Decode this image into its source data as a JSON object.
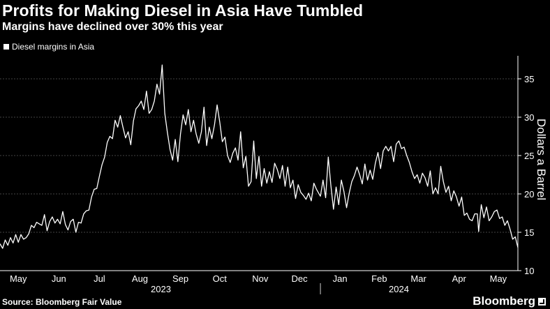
{
  "title": "Profits for Making Diesel in Asia Have Tumbled",
  "subtitle": "Margins have declined over 30% this year",
  "source": "Source: Bloomberg Fair Value",
  "brand": "Bloomberg",
  "colors": {
    "background": "#000000",
    "line": "#ffffff",
    "grid": "#5a5a5a"
  },
  "chart_data": {
    "type": "line",
    "title": "Profits for Making Diesel in Asia Have Tumbled",
    "subtitle": "Margins have declined over 30% this year",
    "ylabel": "Dollars a Barrel",
    "xlabel": "",
    "ylim": [
      10,
      38
    ],
    "yticks": [
      10,
      15,
      20,
      25,
      30,
      35
    ],
    "grid": true,
    "legend_position": "top-left",
    "x_start": "2023-05-01",
    "x_end": "2024-05-31",
    "x_tick_labels": [
      {
        "label": "May",
        "date": "2023-05-15"
      },
      {
        "label": "Jun",
        "date": "2023-06-15"
      },
      {
        "label": "Jul",
        "date": "2023-07-16"
      },
      {
        "label": "Aug",
        "date": "2023-08-16"
      },
      {
        "label": "Sep",
        "date": "2023-09-16"
      },
      {
        "label": "Oct",
        "date": "2023-10-16"
      },
      {
        "label": "Nov",
        "date": "2023-11-16"
      },
      {
        "label": "Dec",
        "date": "2023-12-16"
      },
      {
        "label": "Jan",
        "date": "2024-01-16"
      },
      {
        "label": "Feb",
        "date": "2024-02-15"
      },
      {
        "label": "Mar",
        "date": "2024-03-16"
      },
      {
        "label": "Apr",
        "date": "2024-04-16"
      },
      {
        "label": "May",
        "date": "2024-05-16"
      }
    ],
    "year_labels": [
      {
        "label": "2023",
        "date": "2023-09-01"
      },
      {
        "label": "2024",
        "date": "2024-03-01"
      }
    ],
    "year_divider_date": "2024-01-01",
    "series": [
      {
        "name": "Diesel margins in Asia",
        "points": [
          [
            "2023-05-01",
            13.5
          ],
          [
            "2023-05-03",
            12.9
          ],
          [
            "2023-05-05",
            14.0
          ],
          [
            "2023-05-07",
            13.3
          ],
          [
            "2023-05-09",
            14.3
          ],
          [
            "2023-05-11",
            13.6
          ],
          [
            "2023-05-13",
            14.7
          ],
          [
            "2023-05-15",
            13.7
          ],
          [
            "2023-05-17",
            14.7
          ],
          [
            "2023-05-19",
            14.1
          ],
          [
            "2023-05-21",
            14.3
          ],
          [
            "2023-05-23",
            14.8
          ],
          [
            "2023-05-25",
            15.9
          ],
          [
            "2023-05-27",
            15.6
          ],
          [
            "2023-05-29",
            16.3
          ],
          [
            "2023-05-31",
            16.1
          ],
          [
            "2023-06-02",
            15.9
          ],
          [
            "2023-06-04",
            17.3
          ],
          [
            "2023-06-06",
            15.2
          ],
          [
            "2023-06-08",
            16.4
          ],
          [
            "2023-06-10",
            17.0
          ],
          [
            "2023-06-12",
            16.2
          ],
          [
            "2023-06-14",
            16.7
          ],
          [
            "2023-06-16",
            16.1
          ],
          [
            "2023-06-18",
            17.7
          ],
          [
            "2023-06-20",
            16.0
          ],
          [
            "2023-06-22",
            15.3
          ],
          [
            "2023-06-24",
            16.4
          ],
          [
            "2023-06-26",
            16.7
          ],
          [
            "2023-06-28",
            15.0
          ],
          [
            "2023-06-30",
            16.3
          ],
          [
            "2023-07-02",
            16.2
          ],
          [
            "2023-07-04",
            17.4
          ],
          [
            "2023-07-06",
            17.8
          ],
          [
            "2023-07-08",
            17.9
          ],
          [
            "2023-07-10",
            19.6
          ],
          [
            "2023-07-12",
            20.6
          ],
          [
            "2023-07-14",
            20.7
          ],
          [
            "2023-07-16",
            22.3
          ],
          [
            "2023-07-18",
            23.8
          ],
          [
            "2023-07-20",
            24.8
          ],
          [
            "2023-07-22",
            26.7
          ],
          [
            "2023-07-24",
            27.5
          ],
          [
            "2023-07-26",
            27.2
          ],
          [
            "2023-07-28",
            29.6
          ],
          [
            "2023-07-30",
            28.7
          ],
          [
            "2023-08-01",
            30.2
          ],
          [
            "2023-08-03",
            28.7
          ],
          [
            "2023-08-05",
            27.3
          ],
          [
            "2023-08-07",
            28.1
          ],
          [
            "2023-08-09",
            26.4
          ],
          [
            "2023-08-11",
            29.5
          ],
          [
            "2023-08-13",
            31.1
          ],
          [
            "2023-08-15",
            31.5
          ],
          [
            "2023-08-17",
            32.1
          ],
          [
            "2023-08-19",
            31.0
          ],
          [
            "2023-08-21",
            33.4
          ],
          [
            "2023-08-23",
            30.5
          ],
          [
            "2023-08-25",
            31.0
          ],
          [
            "2023-08-27",
            32.1
          ],
          [
            "2023-08-29",
            34.3
          ],
          [
            "2023-08-31",
            33.0
          ],
          [
            "2023-09-02",
            36.8
          ],
          [
            "2023-09-04",
            30.5
          ],
          [
            "2023-09-06",
            28.0
          ],
          [
            "2023-09-08",
            25.8
          ],
          [
            "2023-09-10",
            24.4
          ],
          [
            "2023-09-12",
            27.1
          ],
          [
            "2023-09-14",
            24.2
          ],
          [
            "2023-09-16",
            27.8
          ],
          [
            "2023-09-18",
            30.3
          ],
          [
            "2023-09-20",
            29.0
          ],
          [
            "2023-09-22",
            31.0
          ],
          [
            "2023-09-24",
            28.1
          ],
          [
            "2023-09-26",
            29.6
          ],
          [
            "2023-09-28",
            27.8
          ],
          [
            "2023-09-30",
            26.6
          ],
          [
            "2023-10-02",
            28.1
          ],
          [
            "2023-10-04",
            31.3
          ],
          [
            "2023-10-06",
            26.3
          ],
          [
            "2023-10-08",
            28.7
          ],
          [
            "2023-10-10",
            27.2
          ],
          [
            "2023-10-12",
            29.0
          ],
          [
            "2023-10-14",
            31.6
          ],
          [
            "2023-10-16",
            29.4
          ],
          [
            "2023-10-18",
            26.8
          ],
          [
            "2023-10-20",
            27.4
          ],
          [
            "2023-10-22",
            25.0
          ],
          [
            "2023-10-24",
            24.1
          ],
          [
            "2023-10-26",
            25.3
          ],
          [
            "2023-10-28",
            26.0
          ],
          [
            "2023-10-30",
            24.4
          ],
          [
            "2023-11-01",
            28.1
          ],
          [
            "2023-11-03",
            23.4
          ],
          [
            "2023-11-05",
            24.9
          ],
          [
            "2023-11-07",
            21.0
          ],
          [
            "2023-11-09",
            21.6
          ],
          [
            "2023-11-11",
            26.9
          ],
          [
            "2023-11-13",
            22.0
          ],
          [
            "2023-11-15",
            24.9
          ],
          [
            "2023-11-17",
            21.0
          ],
          [
            "2023-11-19",
            23.3
          ],
          [
            "2023-11-21",
            21.4
          ],
          [
            "2023-11-23",
            22.9
          ],
          [
            "2023-11-25",
            21.5
          ],
          [
            "2023-11-27",
            24.0
          ],
          [
            "2023-11-29",
            23.2
          ],
          [
            "2023-12-01",
            22.0
          ],
          [
            "2023-12-03",
            23.7
          ],
          [
            "2023-12-05",
            21.0
          ],
          [
            "2023-12-07",
            23.5
          ],
          [
            "2023-12-09",
            20.8
          ],
          [
            "2023-12-11",
            21.8
          ],
          [
            "2023-12-13",
            19.4
          ],
          [
            "2023-12-15",
            21.2
          ],
          [
            "2023-12-17",
            20.2
          ],
          [
            "2023-12-19",
            19.8
          ],
          [
            "2023-12-21",
            19.3
          ],
          [
            "2023-12-23",
            20.1
          ],
          [
            "2023-12-25",
            19.1
          ],
          [
            "2023-12-27",
            21.4
          ],
          [
            "2023-12-29",
            20.6
          ],
          [
            "2024-01-01",
            19.7
          ],
          [
            "2024-01-03",
            21.8
          ],
          [
            "2024-01-05",
            19.5
          ],
          [
            "2024-01-07",
            24.8
          ],
          [
            "2024-01-09",
            21.1
          ],
          [
            "2024-01-11",
            18.0
          ],
          [
            "2024-01-13",
            20.9
          ],
          [
            "2024-01-15",
            18.6
          ],
          [
            "2024-01-17",
            21.8
          ],
          [
            "2024-01-19",
            20.3
          ],
          [
            "2024-01-21",
            18.2
          ],
          [
            "2024-01-23",
            20.1
          ],
          [
            "2024-01-25",
            21.6
          ],
          [
            "2024-01-27",
            22.4
          ],
          [
            "2024-01-29",
            23.5
          ],
          [
            "2024-01-31",
            22.5
          ],
          [
            "2024-02-02",
            21.3
          ],
          [
            "2024-02-04",
            23.9
          ],
          [
            "2024-02-06",
            21.8
          ],
          [
            "2024-02-08",
            23.1
          ],
          [
            "2024-02-10",
            21.9
          ],
          [
            "2024-02-12",
            24.0
          ],
          [
            "2024-02-14",
            25.4
          ],
          [
            "2024-02-16",
            23.3
          ],
          [
            "2024-02-18",
            25.6
          ],
          [
            "2024-02-20",
            26.2
          ],
          [
            "2024-02-22",
            25.6
          ],
          [
            "2024-02-24",
            26.2
          ],
          [
            "2024-02-26",
            24.2
          ],
          [
            "2024-02-28",
            26.5
          ],
          [
            "2024-03-01",
            26.9
          ],
          [
            "2024-03-03",
            25.9
          ],
          [
            "2024-03-05",
            26.1
          ],
          [
            "2024-03-07",
            25.0
          ],
          [
            "2024-03-09",
            24.1
          ],
          [
            "2024-03-11",
            22.9
          ],
          [
            "2024-03-13",
            22.0
          ],
          [
            "2024-03-15",
            22.5
          ],
          [
            "2024-03-17",
            21.4
          ],
          [
            "2024-03-19",
            22.7
          ],
          [
            "2024-03-21",
            22.1
          ],
          [
            "2024-03-23",
            21.0
          ],
          [
            "2024-03-25",
            23.0
          ],
          [
            "2024-03-27",
            20.0
          ],
          [
            "2024-03-29",
            20.8
          ],
          [
            "2024-03-31",
            20.0
          ],
          [
            "2024-04-02",
            23.6
          ],
          [
            "2024-04-04",
            21.6
          ],
          [
            "2024-04-06",
            20.2
          ],
          [
            "2024-04-08",
            21.0
          ],
          [
            "2024-04-10",
            19.1
          ],
          [
            "2024-04-12",
            20.4
          ],
          [
            "2024-04-14",
            19.6
          ],
          [
            "2024-04-16",
            18.4
          ],
          [
            "2024-04-18",
            19.6
          ],
          [
            "2024-04-20",
            17.2
          ],
          [
            "2024-04-22",
            17.5
          ],
          [
            "2024-04-24",
            16.7
          ],
          [
            "2024-04-26",
            16.5
          ],
          [
            "2024-04-28",
            17.4
          ],
          [
            "2024-04-30",
            17.4
          ],
          [
            "2024-05-01",
            15.1
          ],
          [
            "2024-05-03",
            18.6
          ],
          [
            "2024-05-05",
            16.9
          ],
          [
            "2024-05-07",
            18.3
          ],
          [
            "2024-05-09",
            16.5
          ],
          [
            "2024-05-11",
            17.0
          ],
          [
            "2024-05-13",
            17.7
          ],
          [
            "2024-05-15",
            17.9
          ],
          [
            "2024-05-17",
            16.8
          ],
          [
            "2024-05-19",
            17.0
          ],
          [
            "2024-05-21",
            15.9
          ],
          [
            "2024-05-23",
            16.5
          ],
          [
            "2024-05-25",
            15.4
          ],
          [
            "2024-05-27",
            14.1
          ],
          [
            "2024-05-29",
            14.4
          ],
          [
            "2024-05-31",
            13.0
          ]
        ]
      }
    ]
  }
}
